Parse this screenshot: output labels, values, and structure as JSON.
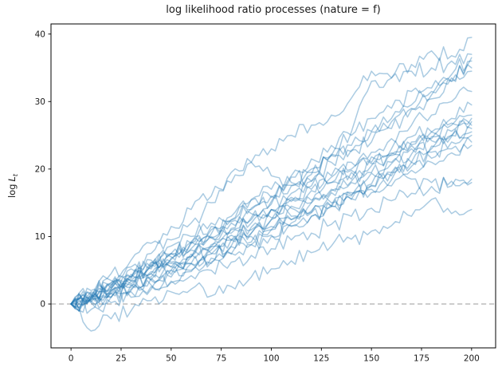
{
  "chart_data": {
    "type": "line",
    "title": "log likelihood ratio processes (nature = f)",
    "xlabel": "",
    "ylabel": {
      "prefix": "log",
      "var": "L",
      "sub": "t"
    },
    "x_ticks": [
      0,
      25,
      50,
      75,
      100,
      125,
      150,
      175,
      200
    ],
    "y_ticks": [
      0,
      10,
      20,
      30,
      40
    ],
    "xlim": [
      -10,
      212
    ],
    "ylim": [
      -6.5,
      41.5
    ],
    "grid": false,
    "legend": null,
    "zero_line": {
      "y": 0,
      "style": "dashed",
      "color": "#adadad"
    },
    "style": {
      "trace_color": "#1f77b4",
      "trace_alpha": 0.38,
      "trace_width": 1.5,
      "axis_color": "#000000",
      "text_color": "#1a1a1a",
      "background": "#ffffff",
      "jitter_seed": 42,
      "jitter_amp": 2.8
    },
    "n_traces": 20,
    "x_anchors": [
      0,
      10,
      20,
      30,
      40,
      50,
      60,
      70,
      80,
      90,
      100,
      110,
      120,
      130,
      140,
      150,
      160,
      170,
      180,
      190,
      200
    ],
    "traces": [
      {
        "end": 39.5,
        "y": [
          0,
          1.5,
          3.5,
          5.5,
          7.5,
          9.5,
          12.0,
          15.0,
          18.0,
          21.0,
          23.0,
          25.0,
          26.5,
          28.0,
          30.5,
          34.5,
          33.5,
          35.5,
          37.5,
          36.8,
          39.5
        ]
      },
      {
        "end": 37.0,
        "y": [
          0,
          1.0,
          2.2,
          4.0,
          5.5,
          7.5,
          9.0,
          11.0,
          12.5,
          14.0,
          16.0,
          17.5,
          19.5,
          22.0,
          25.5,
          33.0,
          33.5,
          34.5,
          35.0,
          36.0,
          37.0
        ]
      },
      {
        "end": 36.5,
        "y": [
          0,
          0.6,
          2.8,
          3.4,
          6.0,
          6.6,
          9.2,
          10.0,
          12.0,
          14.2,
          14.8,
          17.6,
          18.2,
          21.0,
          22.8,
          24.0,
          27.0,
          28.8,
          31.0,
          34.0,
          36.5
        ]
      },
      {
        "end": 36.0,
        "y": [
          0,
          1.8,
          2.4,
          5.2,
          5.8,
          8.6,
          9.0,
          12.0,
          12.4,
          15.4,
          15.8,
          18.8,
          19.2,
          22.2,
          22.6,
          25.6,
          26.0,
          29.0,
          30.4,
          33.0,
          36.0
        ]
      },
      {
        "end": 35.0,
        "y": [
          0,
          1.0,
          3.0,
          4.0,
          6.5,
          7.5,
          10.0,
          11.5,
          13.0,
          15.5,
          17.0,
          19.0,
          21.5,
          23.5,
          25.0,
          27.5,
          29.0,
          31.5,
          32.0,
          33.5,
          35.0
        ]
      },
      {
        "end": 34.5,
        "y": [
          0,
          2.0,
          4.5,
          6.5,
          9.0,
          11.5,
          14.0,
          16.0,
          19.5,
          21.0,
          19.0,
          18.0,
          20.0,
          22.0,
          23.5,
          25.5,
          27.5,
          29.5,
          31.5,
          33.0,
          34.5
        ]
      },
      {
        "end": 31.5,
        "y": [
          0,
          0.5,
          1.5,
          3.0,
          4.0,
          5.5,
          7.0,
          8.5,
          10.5,
          12.0,
          14.0,
          15.5,
          17.5,
          19.0,
          21.0,
          22.5,
          24.5,
          26.5,
          28.0,
          30.0,
          31.5
        ]
      },
      {
        "end": 29.5,
        "y": [
          0,
          1.4,
          1.0,
          2.8,
          3.5,
          5.5,
          6.0,
          8.0,
          9.5,
          11.0,
          12.5,
          14.5,
          15.0,
          17.0,
          18.5,
          20.5,
          22.0,
          24.0,
          25.5,
          27.5,
          29.5
        ]
      },
      {
        "end": 28.0,
        "y": [
          0,
          0.8,
          2.0,
          2.5,
          4.5,
          5.0,
          7.0,
          7.5,
          9.5,
          10.5,
          12.5,
          13.0,
          15.0,
          16.5,
          18.0,
          19.5,
          21.0,
          23.0,
          24.5,
          26.5,
          28.0
        ]
      },
      {
        "end": 27.5,
        "y": [
          0,
          1.1,
          2.5,
          3.8,
          5.2,
          6.8,
          8.0,
          9.8,
          11.0,
          12.8,
          14.0,
          15.8,
          17.0,
          18.8,
          20.0,
          21.8,
          23.0,
          24.8,
          25.5,
          26.8,
          27.5
        ]
      },
      {
        "end": 27.0,
        "y": [
          0,
          0.4,
          1.8,
          2.2,
          3.8,
          4.4,
          6.0,
          6.8,
          8.5,
          9.2,
          11.0,
          12.0,
          13.8,
          14.6,
          16.5,
          17.5,
          19.5,
          21.0,
          23.0,
          25.0,
          27.0
        ]
      },
      {
        "end": 26.5,
        "y": [
          0,
          1.6,
          3.2,
          4.4,
          6.2,
          7.4,
          9.2,
          10.4,
          12.2,
          13.4,
          15.2,
          16.4,
          18.2,
          18.0,
          19.8,
          21.0,
          22.4,
          23.6,
          24.8,
          25.6,
          26.5
        ]
      },
      {
        "end": 26.0,
        "y": [
          0,
          0.9,
          2.2,
          3.4,
          4.8,
          6.2,
          7.4,
          8.8,
          10.2,
          11.4,
          12.8,
          14.2,
          15.4,
          16.8,
          18.2,
          19.4,
          20.8,
          22.2,
          23.4,
          24.8,
          26.0
        ]
      },
      {
        "end": 25.5,
        "y": [
          0,
          1.3,
          2.8,
          4.0,
          5.5,
          7.0,
          8.2,
          9.8,
          11.2,
          12.5,
          14.0,
          15.2,
          16.8,
          18.0,
          19.5,
          20.8,
          22.2,
          23.5,
          24.2,
          25.0,
          25.5
        ]
      },
      {
        "end": 25.0,
        "y": [
          0,
          0.3,
          1.0,
          2.0,
          2.8,
          4.0,
          5.0,
          6.2,
          7.5,
          8.8,
          10.0,
          11.5,
          13.0,
          14.5,
          16.0,
          17.8,
          19.5,
          21.0,
          22.5,
          24.0,
          25.0
        ]
      },
      {
        "end": 24.0,
        "y": [
          0,
          0.7,
          1.6,
          2.8,
          3.6,
          5.0,
          6.0,
          7.4,
          8.6,
          10.0,
          11.0,
          12.5,
          13.6,
          15.0,
          16.2,
          17.6,
          19.0,
          20.4,
          21.6,
          23.0,
          24.0
        ]
      },
      {
        "end": 23.5,
        "y": [
          0,
          -0.8,
          0.2,
          1.0,
          2.2,
          3.4,
          4.8,
          6.0,
          7.4,
          8.8,
          10.2,
          11.6,
          13.0,
          14.4,
          15.6,
          17.0,
          18.4,
          19.8,
          21.0,
          22.4,
          23.5
        ]
      },
      {
        "end": 18.5,
        "y": [
          0,
          0.2,
          1.0,
          1.8,
          2.6,
          3.2,
          4.2,
          5.0,
          6.2,
          7.2,
          8.2,
          9.5,
          10.5,
          11.8,
          13.0,
          14.2,
          15.3,
          16.4,
          17.4,
          18.2,
          18.5
        ]
      },
      {
        "end": 18.0,
        "y": [
          0,
          1.0,
          2.0,
          3.5,
          4.5,
          6.0,
          7.0,
          8.5,
          9.5,
          10.5,
          11.5,
          12.5,
          13.5,
          14.5,
          15.5,
          16.5,
          17.5,
          18.5,
          18.0,
          17.5,
          18.0
        ]
      },
      {
        "end": 14.0,
        "y": [
          0,
          -4.0,
          -2.2,
          -1.0,
          0.5,
          1.8,
          2.2,
          1.2,
          2.6,
          4.0,
          5.2,
          6.4,
          7.6,
          8.6,
          9.6,
          10.8,
          11.6,
          13.0,
          15.5,
          13.4,
          14.0
        ]
      }
    ]
  }
}
